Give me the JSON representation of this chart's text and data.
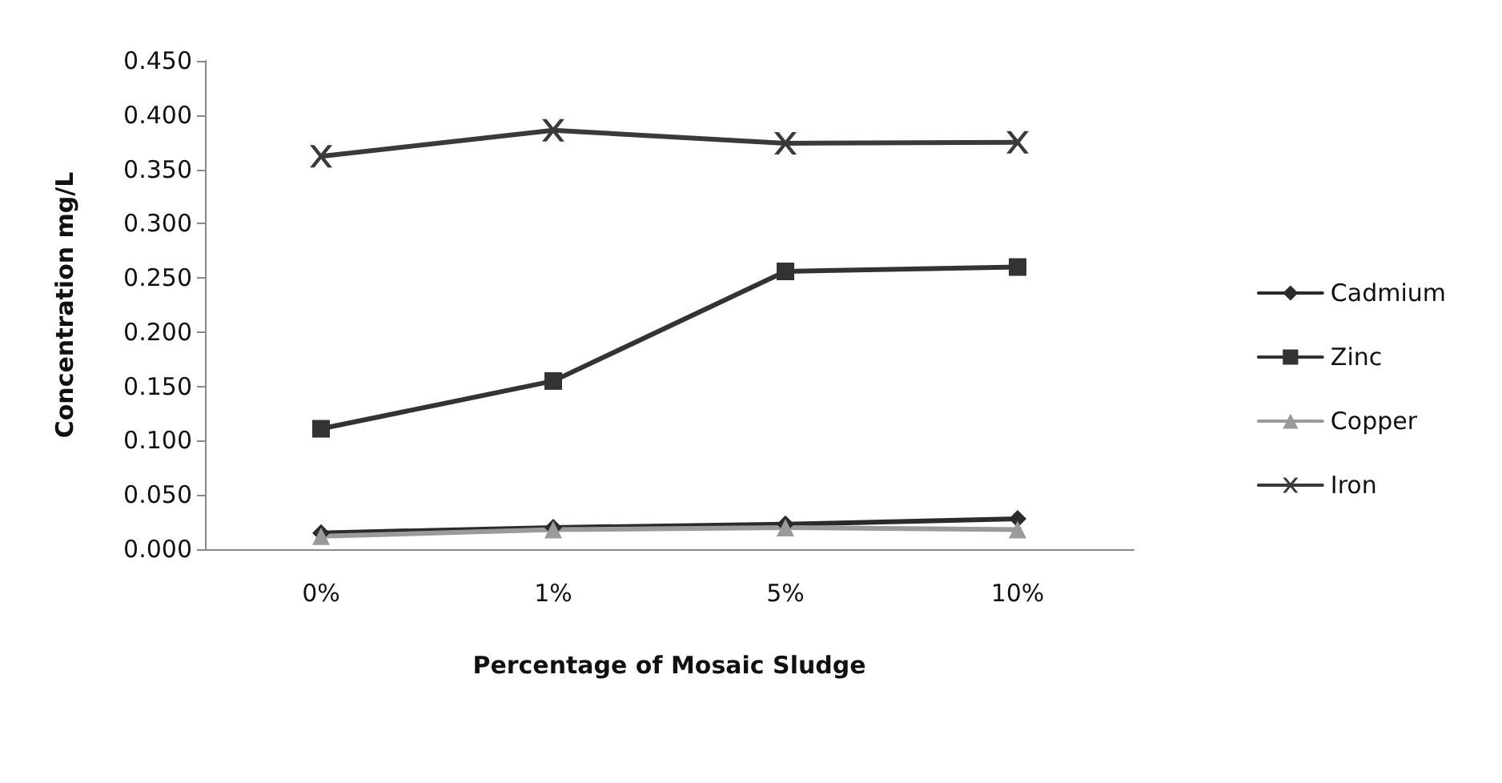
{
  "chart_data": {
    "type": "line",
    "xlabel": "Percentage of Mosaic Sludge",
    "ylabel": "Concentration mg/L",
    "categories": [
      "0%",
      "1%",
      "5%",
      "10%"
    ],
    "series": [
      {
        "name": "Cadmium",
        "color": "#2b2b2b",
        "marker": "diamond",
        "values": [
          0.015,
          0.02,
          0.023,
          0.028
        ]
      },
      {
        "name": "Zinc",
        "color": "#333333",
        "marker": "square",
        "values": [
          0.111,
          0.155,
          0.256,
          0.26
        ]
      },
      {
        "name": "Copper",
        "color": "#9a9a9a",
        "marker": "triangle",
        "values": [
          0.012,
          0.018,
          0.02,
          0.018
        ]
      },
      {
        "name": "Iron",
        "color": "#3a3a3a",
        "marker": "cross",
        "values": [
          0.362,
          0.386,
          0.374,
          0.375
        ]
      }
    ],
    "ylim": [
      0,
      0.45
    ],
    "yticks": [
      {
        "value": 0,
        "label": "0.000"
      },
      {
        "value": 0.05,
        "label": "0.050"
      },
      {
        "value": 0.1,
        "label": "0.100"
      },
      {
        "value": 0.15,
        "label": "0.150"
      },
      {
        "value": 0.2,
        "label": "0.200"
      },
      {
        "value": 0.25,
        "label": "0.250"
      },
      {
        "value": 0.3,
        "label": "0.300"
      },
      {
        "value": 0.35,
        "label": "0.350"
      },
      {
        "value": 0.4,
        "label": "0.400"
      },
      {
        "value": 0.45,
        "label": "0.450"
      }
    ],
    "grid": false,
    "legend": "right"
  }
}
